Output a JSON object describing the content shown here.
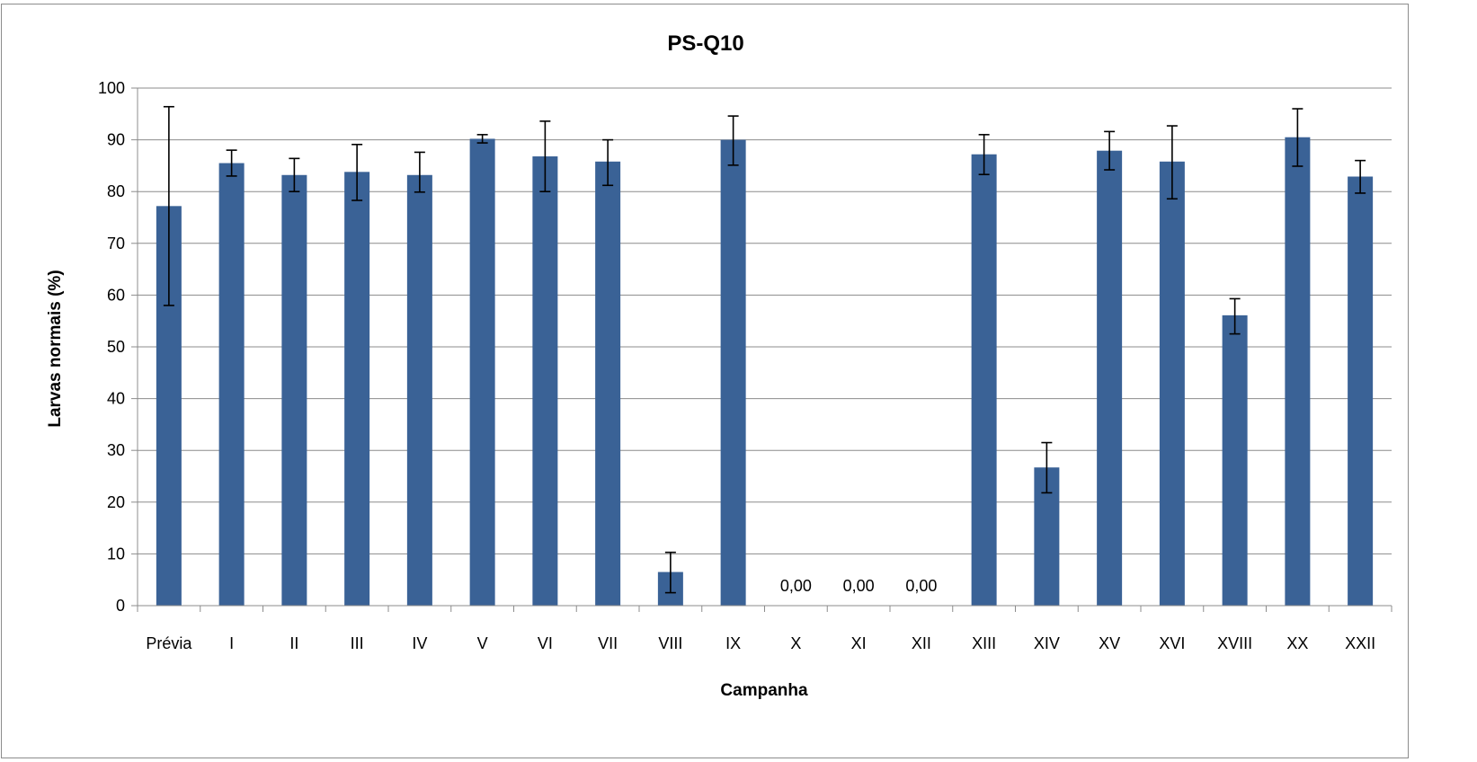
{
  "chart_data": {
    "type": "bar",
    "title": "PS-Q10",
    "xlabel": "Campanha",
    "ylabel": "Larvas normais (%)",
    "ylim": [
      0,
      100
    ],
    "yticks": [
      0,
      10,
      20,
      30,
      40,
      50,
      60,
      70,
      80,
      90,
      100
    ],
    "grid": true,
    "legend": "none",
    "bar_color": "#3a6296",
    "categories": [
      "Prévia",
      "I",
      "II",
      "III",
      "IV",
      "V",
      "VI",
      "VII",
      "VIII",
      "IX",
      "X",
      "XI",
      "XII",
      "XIII",
      "XIV",
      "XV",
      "XVI",
      "XVIII",
      "XX",
      "XXII"
    ],
    "values": [
      77.2,
      85.5,
      83.2,
      83.8,
      83.2,
      90.2,
      86.8,
      85.8,
      6.5,
      90.0,
      0,
      0,
      0,
      87.2,
      26.7,
      87.9,
      85.8,
      56.1,
      90.5,
      82.9
    ],
    "error_low": [
      58.0,
      83.0,
      80.0,
      78.3,
      79.9,
      89.4,
      80.0,
      81.2,
      2.5,
      85.1,
      null,
      null,
      null,
      83.3,
      21.8,
      84.2,
      78.6,
      52.5,
      84.9,
      79.7
    ],
    "error_high": [
      96.4,
      88.0,
      86.4,
      89.1,
      87.6,
      91.0,
      93.6,
      90.0,
      10.3,
      94.6,
      null,
      null,
      null,
      91.0,
      31.5,
      91.6,
      92.7,
      59.3,
      96.0,
      86.0
    ],
    "data_labels": [
      "",
      "",
      "",
      "",
      "",
      "",
      "",
      "",
      "",
      "",
      "0,00",
      "0,00",
      "0,00",
      "",
      "",
      "",
      "",
      "",
      "",
      ""
    ]
  }
}
